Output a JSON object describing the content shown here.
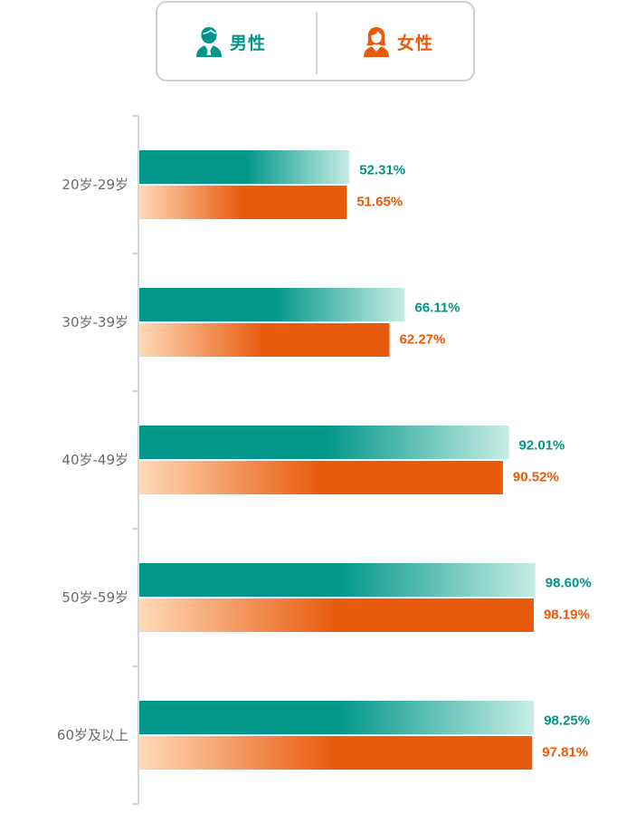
{
  "legend": {
    "male_label": "男性",
    "female_label": "女性",
    "male_icon": "male-user-icon",
    "female_icon": "female-user-icon"
  },
  "colors": {
    "male": "#00968a",
    "male_light": "#c7ede4",
    "female": "#e85a0c",
    "female_light": "#ffd9b8",
    "axis": "#c8c8c8",
    "category_text": "#6b6b6b"
  },
  "chart_data": {
    "type": "bar",
    "orientation": "horizontal",
    "categories": [
      "20岁-29岁",
      "30岁-39岁",
      "40岁-49岁",
      "50岁-59岁",
      "60岁及以上"
    ],
    "series": [
      {
        "name": "男性",
        "values": [
          52.31,
          66.11,
          92.01,
          98.6,
          98.25
        ],
        "labels": [
          "52.31%",
          "66.11%",
          "92.01%",
          "98.60%",
          "98.25%"
        ]
      },
      {
        "name": "女性",
        "values": [
          51.65,
          62.27,
          90.52,
          98.19,
          97.81
        ],
        "labels": [
          "51.65%",
          "62.27%",
          "90.52%",
          "98.19%",
          "97.81%"
        ]
      }
    ],
    "xlim": [
      0,
      100
    ],
    "grid": false,
    "legend_position": "top-center"
  }
}
